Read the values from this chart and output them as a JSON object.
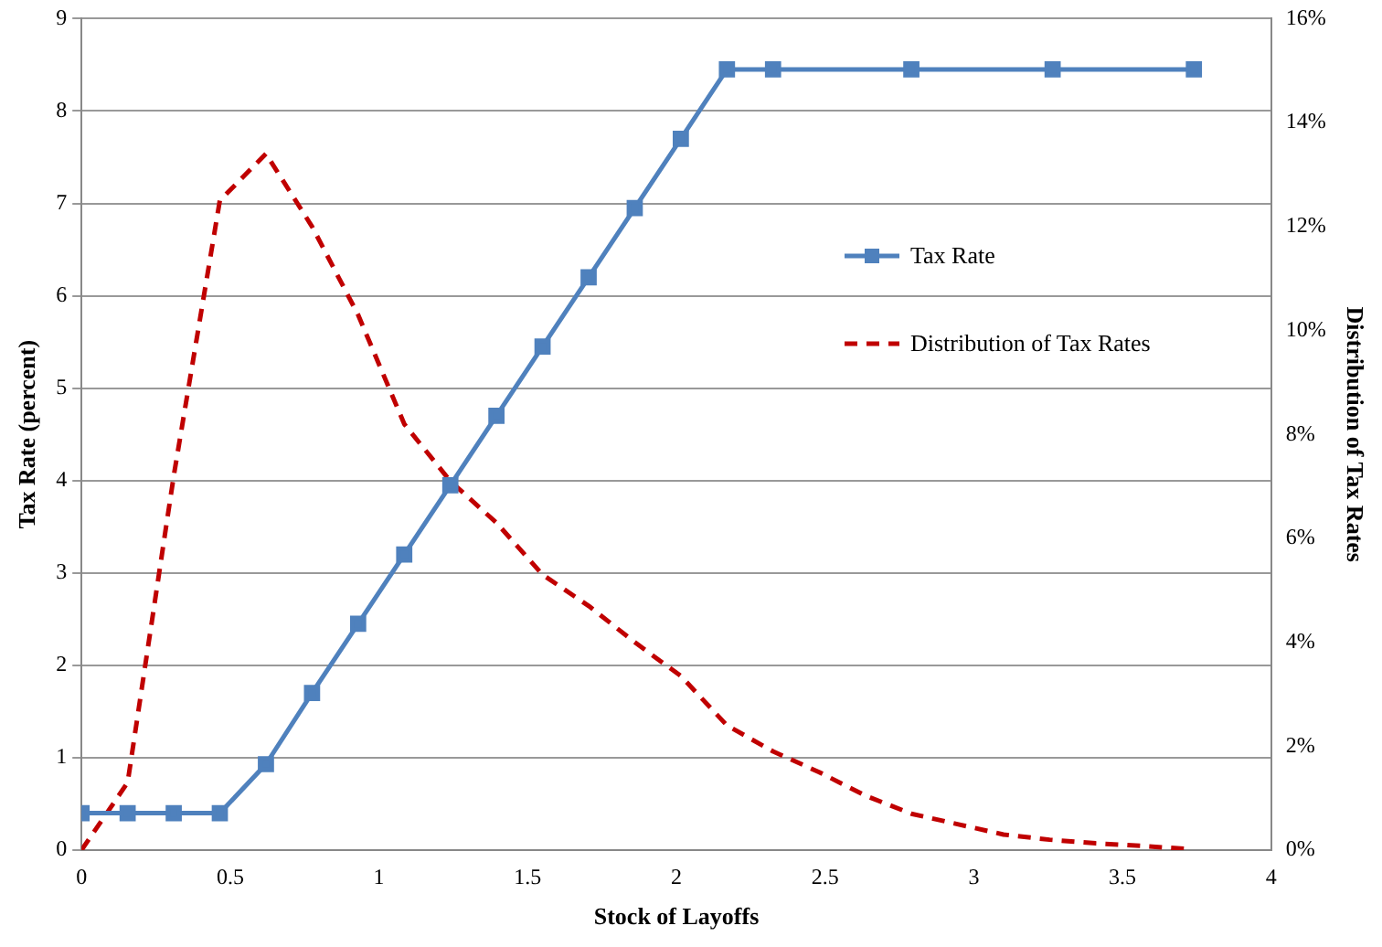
{
  "chart_data": {
    "type": "line",
    "xlabel": "Stock of Layoffs",
    "ylabel": "Tax Rate (percent)",
    "y2label": "Distribution of Tax Rates",
    "xlim": [
      0,
      4
    ],
    "xticks": [
      0,
      0.5,
      1,
      1.5,
      2,
      2.5,
      3,
      3.5,
      4
    ],
    "ylim": [
      0,
      9
    ],
    "yticks": [
      0,
      1,
      2,
      3,
      4,
      5,
      6,
      7,
      8,
      9
    ],
    "y2lim": [
      0,
      16
    ],
    "y2ticks": [
      {
        "value": 0,
        "label": "0%"
      },
      {
        "value": 2,
        "label": "2%"
      },
      {
        "value": 4,
        "label": "4%"
      },
      {
        "value": 6,
        "label": "6%"
      },
      {
        "value": 8,
        "label": "8%"
      },
      {
        "value": 10,
        "label": "10%"
      },
      {
        "value": 12,
        "label": "12%"
      },
      {
        "value": 14,
        "label": "14%"
      },
      {
        "value": 16,
        "label": "16%"
      }
    ],
    "grid": "y",
    "legend": "right",
    "series": [
      {
        "name": "Tax Rate",
        "color": "#4f81bd",
        "marker": "square",
        "line_style": "solid",
        "x": [
          0,
          0.155,
          0.31,
          0.465,
          0.62,
          0.775,
          0.93,
          1.085,
          1.24,
          1.395,
          1.55,
          1.705,
          1.86,
          2.015,
          2.17,
          2.325,
          2.79,
          3.265,
          3.74
        ],
        "values": [
          0.4,
          0.4,
          0.4,
          0.4,
          0.93,
          1.7,
          2.45,
          3.2,
          3.95,
          4.7,
          5.45,
          6.2,
          6.95,
          7.7,
          8.45,
          8.45,
          8.45,
          8.45,
          8.45
        ]
      },
      {
        "name": "Distribution of Tax Rates",
        "color": "#c00000",
        "marker": "none",
        "line_style": "dashed",
        "axis": "y2",
        "x": [
          0,
          0.155,
          0.31,
          0.465,
          0.62,
          0.775,
          0.93,
          1.085,
          1.24,
          1.395,
          1.55,
          1.705,
          1.86,
          2.015,
          2.17,
          2.325,
          2.48,
          2.635,
          2.79,
          2.945,
          3.1,
          3.255,
          3.41,
          3.565,
          3.72
        ],
        "values": [
          0,
          1.3,
          7.2,
          12.5,
          13.4,
          12,
          10.3,
          8.2,
          7.1,
          6.3,
          5.3,
          4.7,
          4,
          3.35,
          2.4,
          1.9,
          1.5,
          1.05,
          0.7,
          0.5,
          0.3,
          0.2,
          0.13,
          0.08,
          0.02
        ]
      }
    ]
  }
}
